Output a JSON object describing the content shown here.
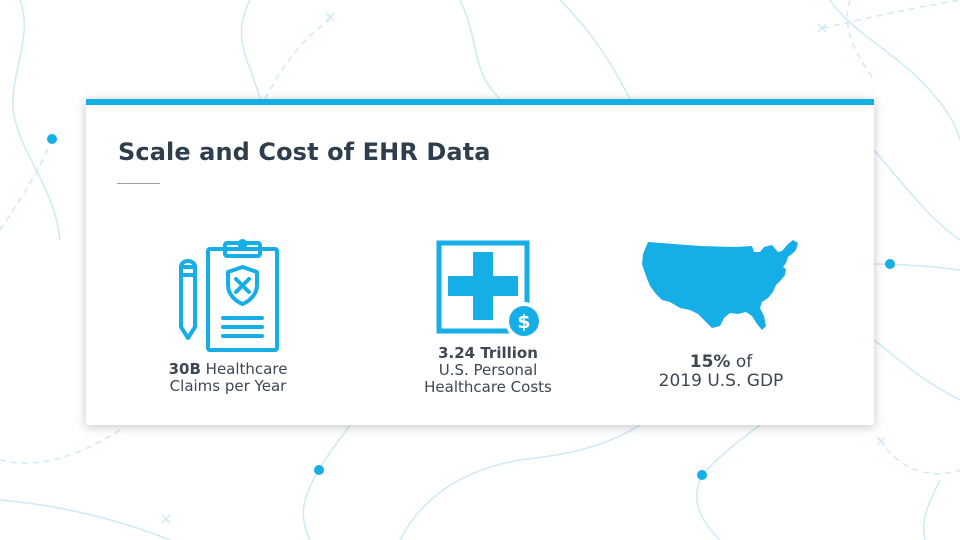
{
  "colors": {
    "accent": "#16aee6",
    "title_text": "#2f3e4c",
    "body_text": "#3d4853",
    "decor_line": "#cdeaf6"
  },
  "card": {
    "title": "Scale and Cost of EHR Data"
  },
  "stats": [
    {
      "icon": "clipboard-shield-icon",
      "value": "30B",
      "line1_suffix": " Healthcare",
      "line2": "Claims per Year"
    },
    {
      "icon": "medical-cross-dollar-icon",
      "value": "3.24 Trillion",
      "line2": "U.S. Personal",
      "line3": "Healthcare Costs"
    },
    {
      "icon": "us-map-icon",
      "value": "15%",
      "line1_suffix": " of",
      "line2": "2019 U.S. GDP"
    }
  ]
}
